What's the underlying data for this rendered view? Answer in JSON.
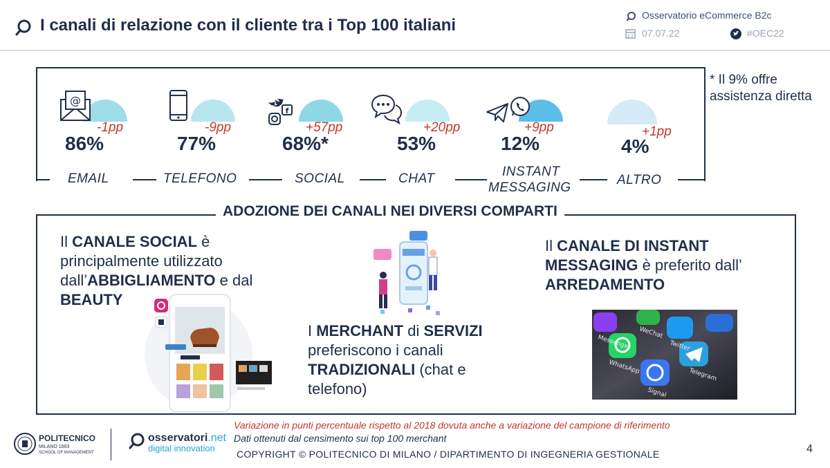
{
  "header": {
    "title": "I canali di relazione con il cliente tra i Top 100 italiani",
    "observatory": "Osservatorio eCommerce B2c",
    "date": "07.07.22",
    "hashtag": "#OEC22"
  },
  "channels": [
    {
      "label_lines": [
        "EMAIL"
      ],
      "value": "86%",
      "delta": "-1pp",
      "icon": "email-icon"
    },
    {
      "label_lines": [
        "TELEFONO"
      ],
      "value": "77%",
      "delta": "-9pp",
      "icon": "phone-icon"
    },
    {
      "label_lines": [
        "SOCIAL"
      ],
      "value": "68%*",
      "delta": "+57pp",
      "icon": "social-icon"
    },
    {
      "label_lines": [
        "CHAT"
      ],
      "value": "53%",
      "delta": "+20pp",
      "icon": "chat-icon"
    },
    {
      "label_lines": [
        "INSTANT",
        "MESSAGING"
      ],
      "value": "12%",
      "delta": "+9pp",
      "icon": "messaging-icon"
    },
    {
      "label_lines": [
        "ALTRO"
      ],
      "value": "4%",
      "delta": "+1pp",
      "icon": ""
    }
  ],
  "note": "* Il 9% offre assistenza diretta",
  "section": {
    "title": "ADOZIONE DEI CANALI NEI DIVERSI COMPARTI",
    "social": {
      "t1": "Il ",
      "b1": "CANALE SOCIAL",
      "t2": " è principalmente utilizzato dall’",
      "b2": "ABBIGLIAMENTO",
      "t3": " e dal ",
      "b3": "BEAUTY"
    },
    "merchant": {
      "t1": "I ",
      "b1": "MERCHANT",
      "t2": " di ",
      "b2": "SERVIZI",
      "t3": " preferiscono i canali ",
      "b3": "TRADIZIONALI",
      "t4": " (chat e telefono)"
    },
    "instant": {
      "t1": "Il ",
      "b1": "CANALE DI INSTANT MESSAGING",
      "t2": " è preferito dall’ ",
      "b2": "ARREDAMENTO"
    },
    "app_labels": [
      "Messenger",
      "WeChat",
      "Twitter",
      "WhatsApp",
      "Telegram",
      "Signal"
    ]
  },
  "footer": {
    "note_red": "Variazione in punti percentuale rispetto al 2018 dovuta anche a variazione del campione di riferimento",
    "note_blue": "Dati ottenuti dal censimento sui top 100 merchant",
    "copyright": "COPYRIGHT © POLITECNICO DI MILANO / DIPARTIMENTO DI INGEGNERIA GESTIONALE",
    "page": "4",
    "poli_name": "POLITECNICO",
    "poli_sub": "MILANO 1863",
    "poli_sub2": "SCHOOL OF MANAGEMENT",
    "oss_name": "osservatori",
    "oss_net": ".net",
    "oss_sub": "digital innovation"
  },
  "colors": {
    "navy": "#1f2f4a",
    "red": "#c0392b",
    "cyan": "#7fd3e3",
    "blue": "#2aa3d6"
  }
}
